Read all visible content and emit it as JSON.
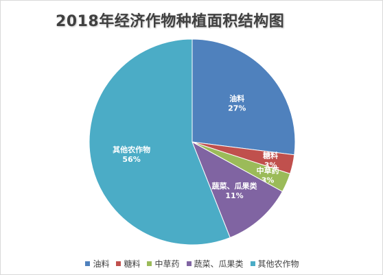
{
  "chart_data": {
    "type": "pie",
    "title": "2018年经济作物种植面积结构图",
    "categories": [
      "油料",
      "糖料",
      "中草药",
      "蔬菜、瓜果类",
      "其他农作物"
    ],
    "values": [
      27,
      3,
      3,
      11,
      56
    ],
    "value_labels": [
      "27%",
      "3%",
      "3%",
      "11%",
      "56%"
    ],
    "colors": [
      "#4f81bd",
      "#c0504d",
      "#9bbb59",
      "#8064a2",
      "#4bacc6"
    ],
    "legend_position": "bottom",
    "start_angle": "12 o'clock, clockwise"
  }
}
